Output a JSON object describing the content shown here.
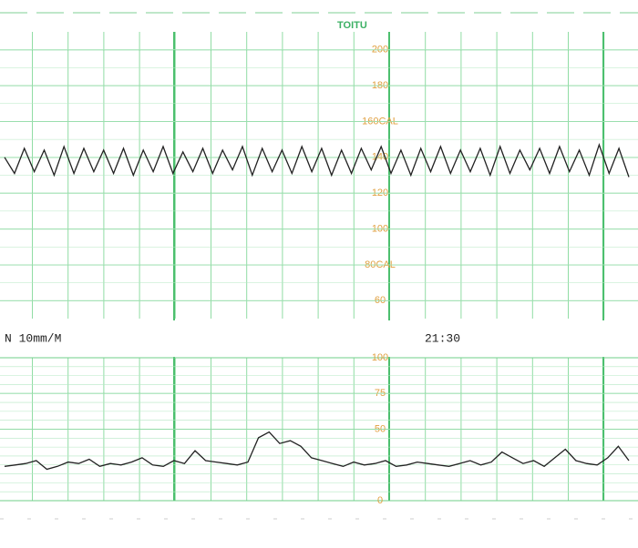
{
  "header": {
    "logo": "TOITU"
  },
  "strip": {
    "speed": "N 10mm/M",
    "time": "21:30"
  },
  "chart_data": [
    {
      "type": "line",
      "color": "#222222",
      "grid": true,
      "grid_color": "#6fcf8a",
      "tick_color": "#e0a040",
      "ylim": [
        50,
        210
      ],
      "yticks": [
        60,
        {
          "value": 80,
          "label": "80CAL"
        },
        100,
        120,
        140,
        {
          "value": 160,
          "label": "160CAL"
        },
        180,
        200
      ],
      "values": [
        140,
        131,
        145,
        132,
        144,
        130,
        146,
        131,
        145,
        132,
        144,
        131,
        145,
        130,
        144,
        132,
        146,
        131,
        143,
        132,
        145,
        131,
        144,
        133,
        146,
        130,
        145,
        132,
        144,
        131,
        146,
        132,
        145,
        130,
        144,
        131,
        145,
        133,
        146,
        131,
        144,
        130,
        145,
        132,
        146,
        131,
        144,
        132,
        145,
        130,
        146,
        131,
        144,
        133,
        145,
        131,
        146,
        132,
        144,
        130,
        147,
        131,
        145,
        129
      ]
    },
    {
      "type": "line",
      "color": "#222222",
      "grid": true,
      "grid_color": "#6fcf8a",
      "tick_color": "#e0a040",
      "ylim": [
        0,
        100
      ],
      "yticks": [
        0,
        50,
        75,
        100
      ],
      "values": [
        24,
        25,
        26,
        28,
        22,
        24,
        27,
        26,
        29,
        24,
        26,
        25,
        27,
        30,
        25,
        24,
        28,
        26,
        35,
        28,
        27,
        26,
        25,
        27,
        44,
        48,
        40,
        42,
        38,
        30,
        28,
        26,
        24,
        27,
        25,
        26,
        28,
        24,
        25,
        27,
        26,
        25,
        24,
        26,
        28,
        25,
        27,
        34,
        30,
        26,
        28,
        24,
        30,
        36,
        28,
        26,
        25,
        30,
        38,
        28
      ]
    }
  ]
}
